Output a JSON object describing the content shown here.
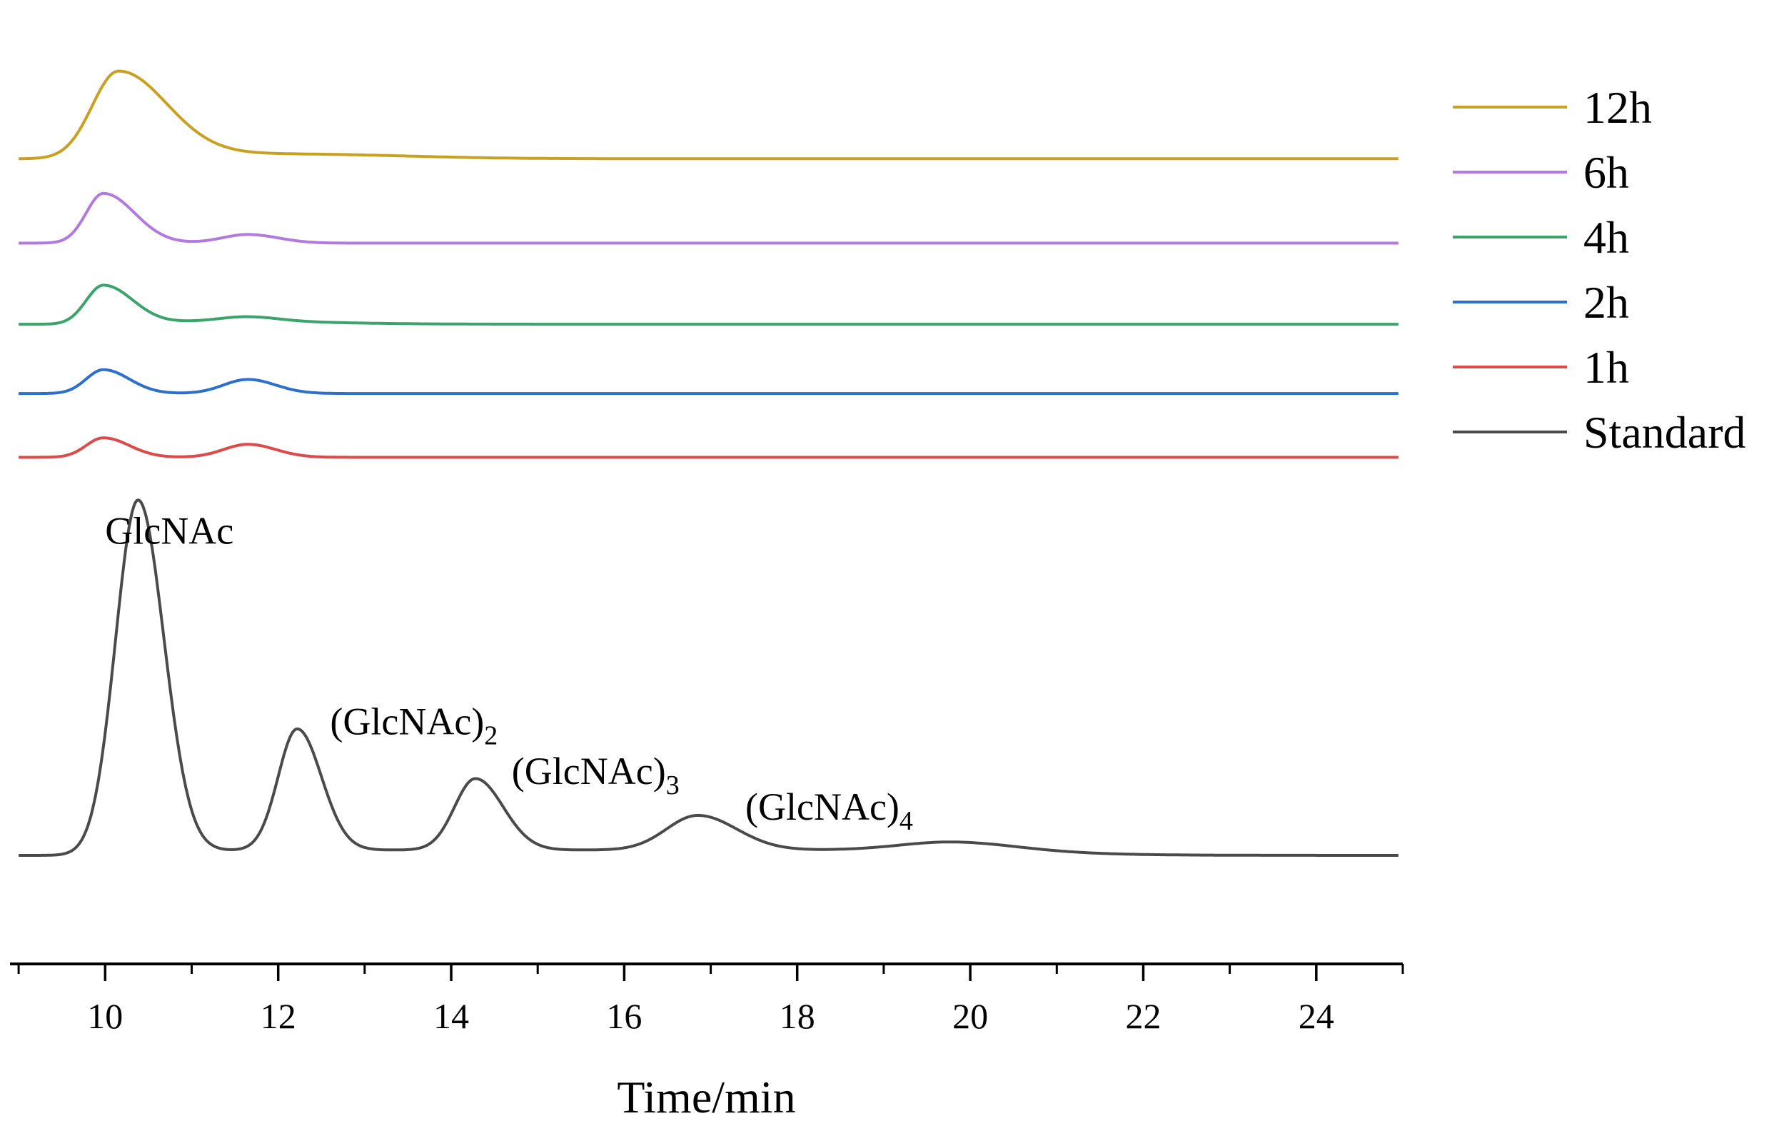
{
  "chart_data": {
    "type": "line",
    "title": "",
    "xlabel": "Time/min",
    "ylabel": "",
    "xlim": [
      8.9,
      25.0
    ],
    "xticks_major": [
      10,
      12,
      14,
      16,
      18,
      20,
      22,
      24
    ],
    "xticks_minor": [
      9,
      11,
      13,
      15,
      17,
      19,
      21,
      23,
      25
    ],
    "x_tick_labels": [
      "10",
      "12",
      "14",
      "16",
      "18",
      "20",
      "22",
      "24"
    ],
    "grid": false,
    "legend_position": "right",
    "series": [
      {
        "name": "Standard",
        "color": "#4a4a4a",
        "offset": 0.0,
        "baseline": 0.0,
        "peaks": [
          {
            "x": 10.38,
            "height": 3.28,
            "width_left": 0.26,
            "width_right": 0.3
          },
          {
            "x": 12.22,
            "height": 1.12,
            "width_left": 0.22,
            "width_right": 0.28
          },
          {
            "x": 14.28,
            "height": 0.66,
            "width_left": 0.24,
            "width_right": 0.32
          },
          {
            "x": 16.85,
            "height": 0.32,
            "width_left": 0.36,
            "width_right": 0.45
          },
          {
            "x": 19.8,
            "height": 0.08,
            "width_left": 0.6,
            "width_right": 0.7
          }
        ],
        "plateaus": [
          {
            "start": 10.9,
            "end": 21.0,
            "level": 0.05
          }
        ]
      },
      {
        "name": "1h",
        "color": "#dd4a48",
        "offset": 3.68,
        "baseline": 0.0,
        "peaks": [
          {
            "x": 9.98,
            "height": 0.18,
            "width_left": 0.2,
            "width_right": 0.3
          },
          {
            "x": 11.65,
            "height": 0.12,
            "width_left": 0.28,
            "width_right": 0.32
          }
        ],
        "plateaus": []
      },
      {
        "name": "2h",
        "color": "#2b6fcf",
        "offset": 4.27,
        "baseline": 0.0,
        "peaks": [
          {
            "x": 9.98,
            "height": 0.22,
            "width_left": 0.2,
            "width_right": 0.3
          },
          {
            "x": 11.65,
            "height": 0.13,
            "width_left": 0.28,
            "width_right": 0.32
          }
        ],
        "plateaus": []
      },
      {
        "name": "4h",
        "color": "#3aa46a",
        "offset": 4.91,
        "baseline": 0.0,
        "peaks": [
          {
            "x": 9.98,
            "height": 0.36,
            "width_left": 0.2,
            "width_right": 0.34
          },
          {
            "x": 11.65,
            "height": 0.04,
            "width_left": 0.3,
            "width_right": 0.35
          }
        ],
        "plateaus": [
          {
            "start": 10.8,
            "end": 12.4,
            "level": 0.04
          }
        ]
      },
      {
        "name": "6h",
        "color": "#b27ae0",
        "offset": 5.66,
        "baseline": 0.0,
        "peaks": [
          {
            "x": 9.98,
            "height": 0.46,
            "width_left": 0.2,
            "width_right": 0.36
          },
          {
            "x": 11.65,
            "height": 0.08,
            "width_left": 0.3,
            "width_right": 0.35
          }
        ],
        "plateaus": []
      },
      {
        "name": "12h",
        "color": "#c9a020",
        "offset": 6.44,
        "baseline": 0.0,
        "peaks": [
          {
            "x": 10.15,
            "height": 0.8,
            "width_left": 0.3,
            "width_right": 0.55
          }
        ],
        "plateaus": [
          {
            "start": 10.5,
            "end": 13.5,
            "level": 0.05
          }
        ]
      }
    ],
    "annotations": [
      {
        "text": "GlcNAc",
        "subscript": "",
        "x": 10.0,
        "y_units": 2.88
      },
      {
        "text": "(GlcNAc)",
        "subscript": "2",
        "x": 12.6,
        "y_units": 1.12
      },
      {
        "text": "(GlcNAc)",
        "subscript": "3",
        "x": 14.7,
        "y_units": 0.66
      },
      {
        "text": "(GlcNAc)",
        "subscript": "4",
        "x": 17.4,
        "y_units": 0.33
      }
    ]
  }
}
